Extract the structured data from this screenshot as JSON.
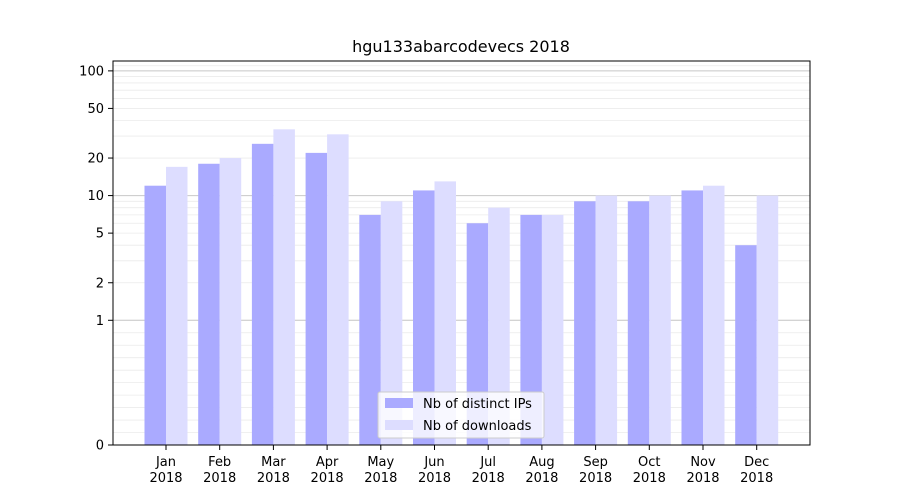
{
  "chart_data": {
    "type": "bar",
    "title": "hgu133abarcodevecs 2018",
    "xlabel": "",
    "ylabel": "",
    "y_scale": "symlog",
    "ylim": [
      0,
      120
    ],
    "y_ticks": [
      0,
      1,
      2,
      5,
      10,
      20,
      50,
      100
    ],
    "grid": true,
    "legend_position": "bottom-center",
    "categories": [
      {
        "month": "Jan",
        "year": "2018"
      },
      {
        "month": "Feb",
        "year": "2018"
      },
      {
        "month": "Mar",
        "year": "2018"
      },
      {
        "month": "Apr",
        "year": "2018"
      },
      {
        "month": "May",
        "year": "2018"
      },
      {
        "month": "Jun",
        "year": "2018"
      },
      {
        "month": "Jul",
        "year": "2018"
      },
      {
        "month": "Aug",
        "year": "2018"
      },
      {
        "month": "Sep",
        "year": "2018"
      },
      {
        "month": "Oct",
        "year": "2018"
      },
      {
        "month": "Nov",
        "year": "2018"
      },
      {
        "month": "Dec",
        "year": "2018"
      }
    ],
    "series": [
      {
        "name": "Nb of distinct IPs",
        "color": "#aaaaff",
        "values": [
          12,
          18,
          26,
          22,
          7,
          11,
          6,
          7,
          9,
          9,
          11,
          4
        ]
      },
      {
        "name": "Nb of downloads",
        "color": "#ddddff",
        "values": [
          17,
          20,
          34,
          31,
          9,
          13,
          8,
          7,
          10,
          10,
          12,
          10
        ]
      }
    ]
  }
}
